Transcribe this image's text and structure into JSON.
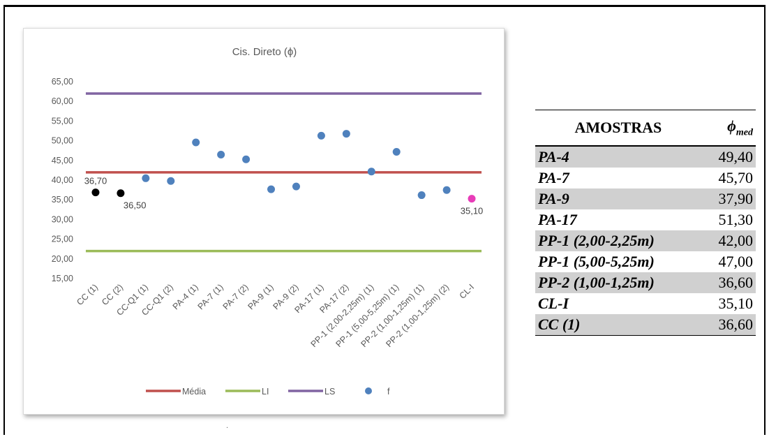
{
  "chart_data": {
    "type": "line",
    "title": "Cis. Direto (ϕ)",
    "xlabel": "",
    "ylabel": "",
    "ylim": [
      15,
      65
    ],
    "yticks": [
      15,
      20,
      25,
      30,
      35,
      40,
      45,
      50,
      55,
      60,
      65
    ],
    "ytick_labels": [
      "15,00",
      "20,00",
      "25,00",
      "30,00",
      "35,00",
      "40,00",
      "45,00",
      "50,00",
      "55,00",
      "60,00",
      "65,00"
    ],
    "grid": false,
    "legend_position": "bottom",
    "categories": [
      "CC (1)",
      "CC (2)",
      "CC-Q1 (1)",
      "CC-Q1 (2)",
      "PA-4 (1)",
      "PA-7 (1)",
      "PA-7 (2)",
      "PA-9 (1)",
      "PA-9 (2)",
      "PA-17 (1)",
      "PA-17 (2)",
      "PP-1 (2,00-2,25m) (1)",
      "PP-1 (5,00-5,25m) (1)",
      "PP-2 (1,00-1,25m) (1)",
      "PP-2 (1,00-1,25m) (2)",
      "CL-I"
    ],
    "series": [
      {
        "name": "Média",
        "kind": "line",
        "color": "#c0504d",
        "values": [
          41.8,
          41.8,
          41.8,
          41.8,
          41.8,
          41.8,
          41.8,
          41.8,
          41.8,
          41.8,
          41.8,
          41.8,
          41.8,
          41.8,
          41.8,
          41.8
        ]
      },
      {
        "name": "LI",
        "kind": "line",
        "color": "#9bbb59",
        "values": [
          21.8,
          21.8,
          21.8,
          21.8,
          21.8,
          21.8,
          21.8,
          21.8,
          21.8,
          21.8,
          21.8,
          21.8,
          21.8,
          21.8,
          21.8,
          21.8
        ]
      },
      {
        "name": "LS",
        "kind": "line",
        "color": "#8064a2",
        "values": [
          61.8,
          61.8,
          61.8,
          61.8,
          61.8,
          61.8,
          61.8,
          61.8,
          61.8,
          61.8,
          61.8,
          61.8,
          61.8,
          61.8,
          61.8,
          61.8
        ]
      },
      {
        "name": "f",
        "kind": "scatter",
        "color": "#4f81bd",
        "values": [
          36.7,
          36.5,
          40.3,
          39.6,
          49.4,
          46.3,
          45.1,
          37.5,
          38.2,
          51.1,
          51.6,
          42.0,
          47.0,
          36.0,
          37.3,
          35.1
        ]
      }
    ],
    "point_colors": [
      "#000000",
      "#000000",
      "#4f81bd",
      "#4f81bd",
      "#4f81bd",
      "#4f81bd",
      "#4f81bd",
      "#4f81bd",
      "#4f81bd",
      "#4f81bd",
      "#4f81bd",
      "#4f81bd",
      "#4f81bd",
      "#4f81bd",
      "#4f81bd",
      "#e83cb8"
    ],
    "annotations": [
      {
        "index": 0,
        "text": "36,70",
        "placement": "above"
      },
      {
        "index": 1,
        "text": "36,50",
        "placement": "below"
      },
      {
        "index": 15,
        "text": "35,10",
        "placement": "below"
      }
    ]
  },
  "table": {
    "header": {
      "name": "AMOSTRAS",
      "value_base": "ϕ",
      "value_sub": "med"
    },
    "rows": [
      {
        "name": "PA-4",
        "value": "49,40",
        "shaded": true
      },
      {
        "name": "PA-7",
        "value": "45,70",
        "shaded": false
      },
      {
        "name": "PA-9",
        "value": "37,90",
        "shaded": true
      },
      {
        "name": "PA-17",
        "value": "51,30",
        "shaded": false
      },
      {
        "name": "PP-1 (2,00-2,25m)",
        "value": "42,00",
        "shaded": true
      },
      {
        "name": "PP-1 (5,00-5,25m)",
        "value": "47,00",
        "shaded": false
      },
      {
        "name": "PP-2 (1,00-1,25m)",
        "value": "36,60",
        "shaded": true
      },
      {
        "name": "CL-I",
        "value": "35,10",
        "shaded": false
      },
      {
        "name": "CC (1)",
        "value": "36,60",
        "shaded": true
      }
    ]
  },
  "footer_mark": "."
}
